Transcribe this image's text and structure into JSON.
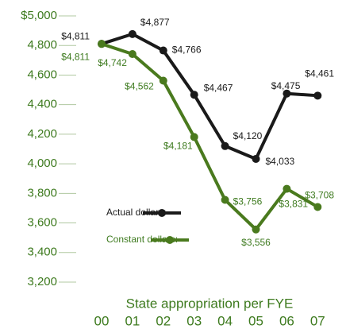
{
  "chart_data": {
    "type": "line",
    "x_label": "State appropriation per FYE",
    "categories": [
      "00",
      "01",
      "02",
      "03",
      "04",
      "05",
      "06",
      "07"
    ],
    "series": [
      {
        "name": "Actual dollars:",
        "color": "#1a1a1a",
        "values": [
          4811,
          4877,
          4766,
          4467,
          4120,
          4033,
          4475,
          4461
        ],
        "value_labels": [
          "$4,811",
          "$4,877",
          "$4,766",
          "$4,467",
          "$4,120",
          "$4,033",
          "$4,475",
          "$4,461"
        ]
      },
      {
        "name": "Constant dollars:",
        "color": "#4a7a1e",
        "values": [
          4811,
          4742,
          4562,
          4181,
          3756,
          3556,
          3831,
          3708
        ],
        "value_labels": [
          "$4,811",
          "$4,742",
          "$4,562",
          "$4,181",
          "$3,756",
          "$3,556",
          "$3,831",
          "$3,708"
        ]
      }
    ],
    "ylim": [
      3200,
      5000
    ],
    "yticks": [
      {
        "value": 3200,
        "label": "3,200"
      },
      {
        "value": 3400,
        "label": "3,400"
      },
      {
        "value": 3600,
        "label": "3,600"
      },
      {
        "value": 3800,
        "label": "3,800"
      },
      {
        "value": 4000,
        "label": "4,000"
      },
      {
        "value": 4200,
        "label": "4,200"
      },
      {
        "value": 4400,
        "label": "4,400"
      },
      {
        "value": 4600,
        "label": "4,600"
      },
      {
        "value": 4800,
        "label": "4,800"
      },
      {
        "value": 5000,
        "label": "$5,000"
      }
    ]
  }
}
